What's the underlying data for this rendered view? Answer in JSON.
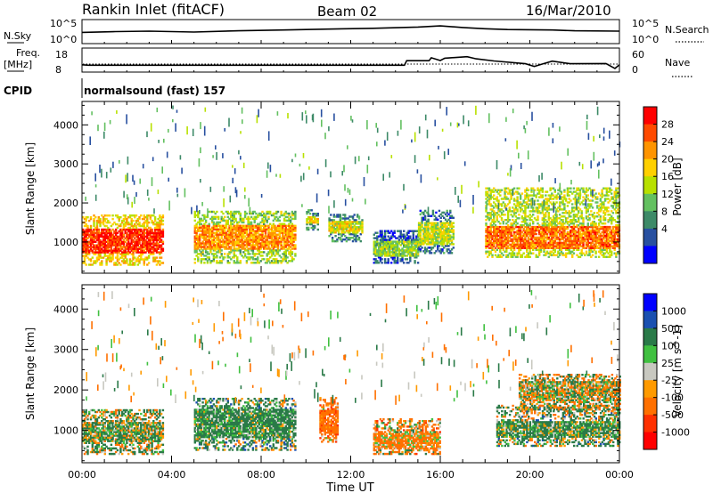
{
  "header": {
    "station": "Rankin Inlet (fitACF)",
    "beam": "Beam 02",
    "date": "16/Mar/2010"
  },
  "top_panels": {
    "nsky_label": "N.Sky",
    "nsearch_label": "N.Search",
    "nsky_ticks": [
      "10^5",
      "10^0"
    ],
    "freq_label": "Freq.",
    "freq_unit": "[MHz]",
    "freq_ticks": [
      "18",
      "8"
    ],
    "nave_label": "Nave",
    "nave_ticks": [
      "60",
      "0"
    ],
    "cpid_label": "CPID",
    "cpid_value": "normalsound (fast) 157"
  },
  "axes": {
    "xlabel": "Time UT",
    "ylabel": "Slant Range [km]",
    "xtick_labels": [
      "00:00",
      "04:00",
      "08:00",
      "12:00",
      "16:00",
      "20:00",
      "00:00"
    ],
    "ytick_labels": [
      "1000",
      "2000",
      "3000",
      "4000"
    ]
  },
  "power_colorbar": {
    "label": "Power [dB]",
    "ticks": [
      "28",
      "24",
      "20",
      "16",
      "12",
      "8",
      "4"
    ],
    "colors": [
      "#ff0000",
      "#ff4a00",
      "#ff9400",
      "#ffd000",
      "#b8e000",
      "#63c060",
      "#3d8a68",
      "#2850a0",
      "#0000ff"
    ]
  },
  "velocity_colorbar": {
    "label": "Velocity [m s^-1]",
    "ticks": [
      "1000",
      "500",
      "100",
      "25",
      "-25",
      "-100",
      "-500",
      "-1000"
    ],
    "colors": [
      "#0000ff",
      "#1a50b0",
      "#2a7a48",
      "#40c040",
      "#c8c8c0",
      "#ff9a00",
      "#ff7000",
      "#ff3000",
      "#ff0000"
    ]
  },
  "chart_data": {
    "type": "heatmap",
    "title": "Rankin Inlet (fitACF)",
    "xlabel": "Time UT",
    "ylabel": "Slant Range [km]",
    "xlim_hours": [
      0,
      24
    ],
    "ylim_km": [
      200,
      4600
    ],
    "xticks_hours": [
      0,
      4,
      8,
      12,
      16,
      20,
      24
    ],
    "yticks_km": [
      1000,
      2000,
      3000,
      4000
    ],
    "nsky_series": [
      [
        0,
        2.3
      ],
      [
        1.5,
        2.5
      ],
      [
        3,
        2.6
      ],
      [
        5,
        2.4
      ],
      [
        7,
        2.7
      ],
      [
        9,
        2.9
      ],
      [
        11,
        3.1
      ],
      [
        13,
        3.3
      ],
      [
        15,
        3.6
      ],
      [
        16,
        3.9
      ],
      [
        17,
        3.5
      ],
      [
        18,
        3.2
      ],
      [
        19,
        3.0
      ],
      [
        21,
        2.9
      ],
      [
        22,
        2.7
      ],
      [
        24,
        2.6
      ]
    ],
    "freq_series": [
      [
        0,
        11.0
      ],
      [
        0.3,
        10.8
      ],
      [
        14.4,
        10.8
      ],
      [
        14.5,
        12.9
      ],
      [
        15.5,
        12.9
      ],
      [
        15.6,
        14.3
      ],
      [
        16.0,
        13.0
      ],
      [
        16.2,
        14.1
      ],
      [
        17.2,
        14.8
      ],
      [
        17.6,
        13.8
      ],
      [
        18.4,
        12.8
      ],
      [
        19.8,
        11.5
      ],
      [
        20.2,
        10.2
      ],
      [
        20.6,
        11.5
      ],
      [
        21.0,
        12.7
      ],
      [
        21.8,
        11.5
      ],
      [
        23.4,
        11.6
      ],
      [
        23.8,
        9.3
      ],
      [
        24,
        11.0
      ]
    ],
    "nave_level": 20,
    "series": [
      {
        "name": "Power",
        "regions": [
          {
            "t": [
              0,
              3.6
            ],
            "r": [
              400,
              1700
            ],
            "core": [
              700,
              1300
            ],
            "level": 26
          },
          {
            "t": [
              5.0,
              9.5
            ],
            "r": [
              450,
              1800
            ],
            "core": [
              800,
              1400
            ],
            "level": 20
          },
          {
            "t": [
              10.0,
              10.5
            ],
            "r": [
              1300,
              1800
            ],
            "core": [
              1450,
              1650
            ],
            "level": 14
          },
          {
            "t": [
              11.0,
              12.5
            ],
            "r": [
              1000,
              1700
            ],
            "core": [
              1200,
              1500
            ],
            "level": 14
          },
          {
            "t": [
              13.0,
              15.0
            ],
            "r": [
              450,
              1300
            ],
            "core": [
              600,
              1000
            ],
            "level": 10
          },
          {
            "t": [
              15.0,
              16.6
            ],
            "r": [
              700,
              1800
            ],
            "core": [
              900,
              1500
            ],
            "level": 12
          },
          {
            "t": [
              18.0,
              24
            ],
            "r": [
              600,
              2400
            ],
            "core": [
              800,
              1400
            ],
            "level": 22
          }
        ]
      },
      {
        "name": "Velocity",
        "regions": [
          {
            "t": [
              0,
              3.6
            ],
            "r": [
              400,
              1500
            ],
            "core": [
              700,
              1200
            ],
            "level": 100
          },
          {
            "t": [
              5.0,
              9.5
            ],
            "r": [
              500,
              1800
            ],
            "core": [
              800,
              1500
            ],
            "level": 200
          },
          {
            "t": [
              10.6,
              11.4
            ],
            "r": [
              700,
              1800
            ],
            "core": [
              900,
              1500
            ],
            "level": -300
          },
          {
            "t": [
              13.0,
              16.0
            ],
            "r": [
              400,
              1300
            ],
            "core": [
              500,
              900
            ],
            "level": -150
          },
          {
            "t": [
              18.5,
              24
            ],
            "r": [
              600,
              1600
            ],
            "core": [
              800,
              1200
            ],
            "level": 150
          },
          {
            "t": [
              19.5,
              24
            ],
            "r": [
              1500,
              2400
            ],
            "core": [
              1700,
              2200
            ],
            "level": 0
          }
        ]
      }
    ]
  }
}
